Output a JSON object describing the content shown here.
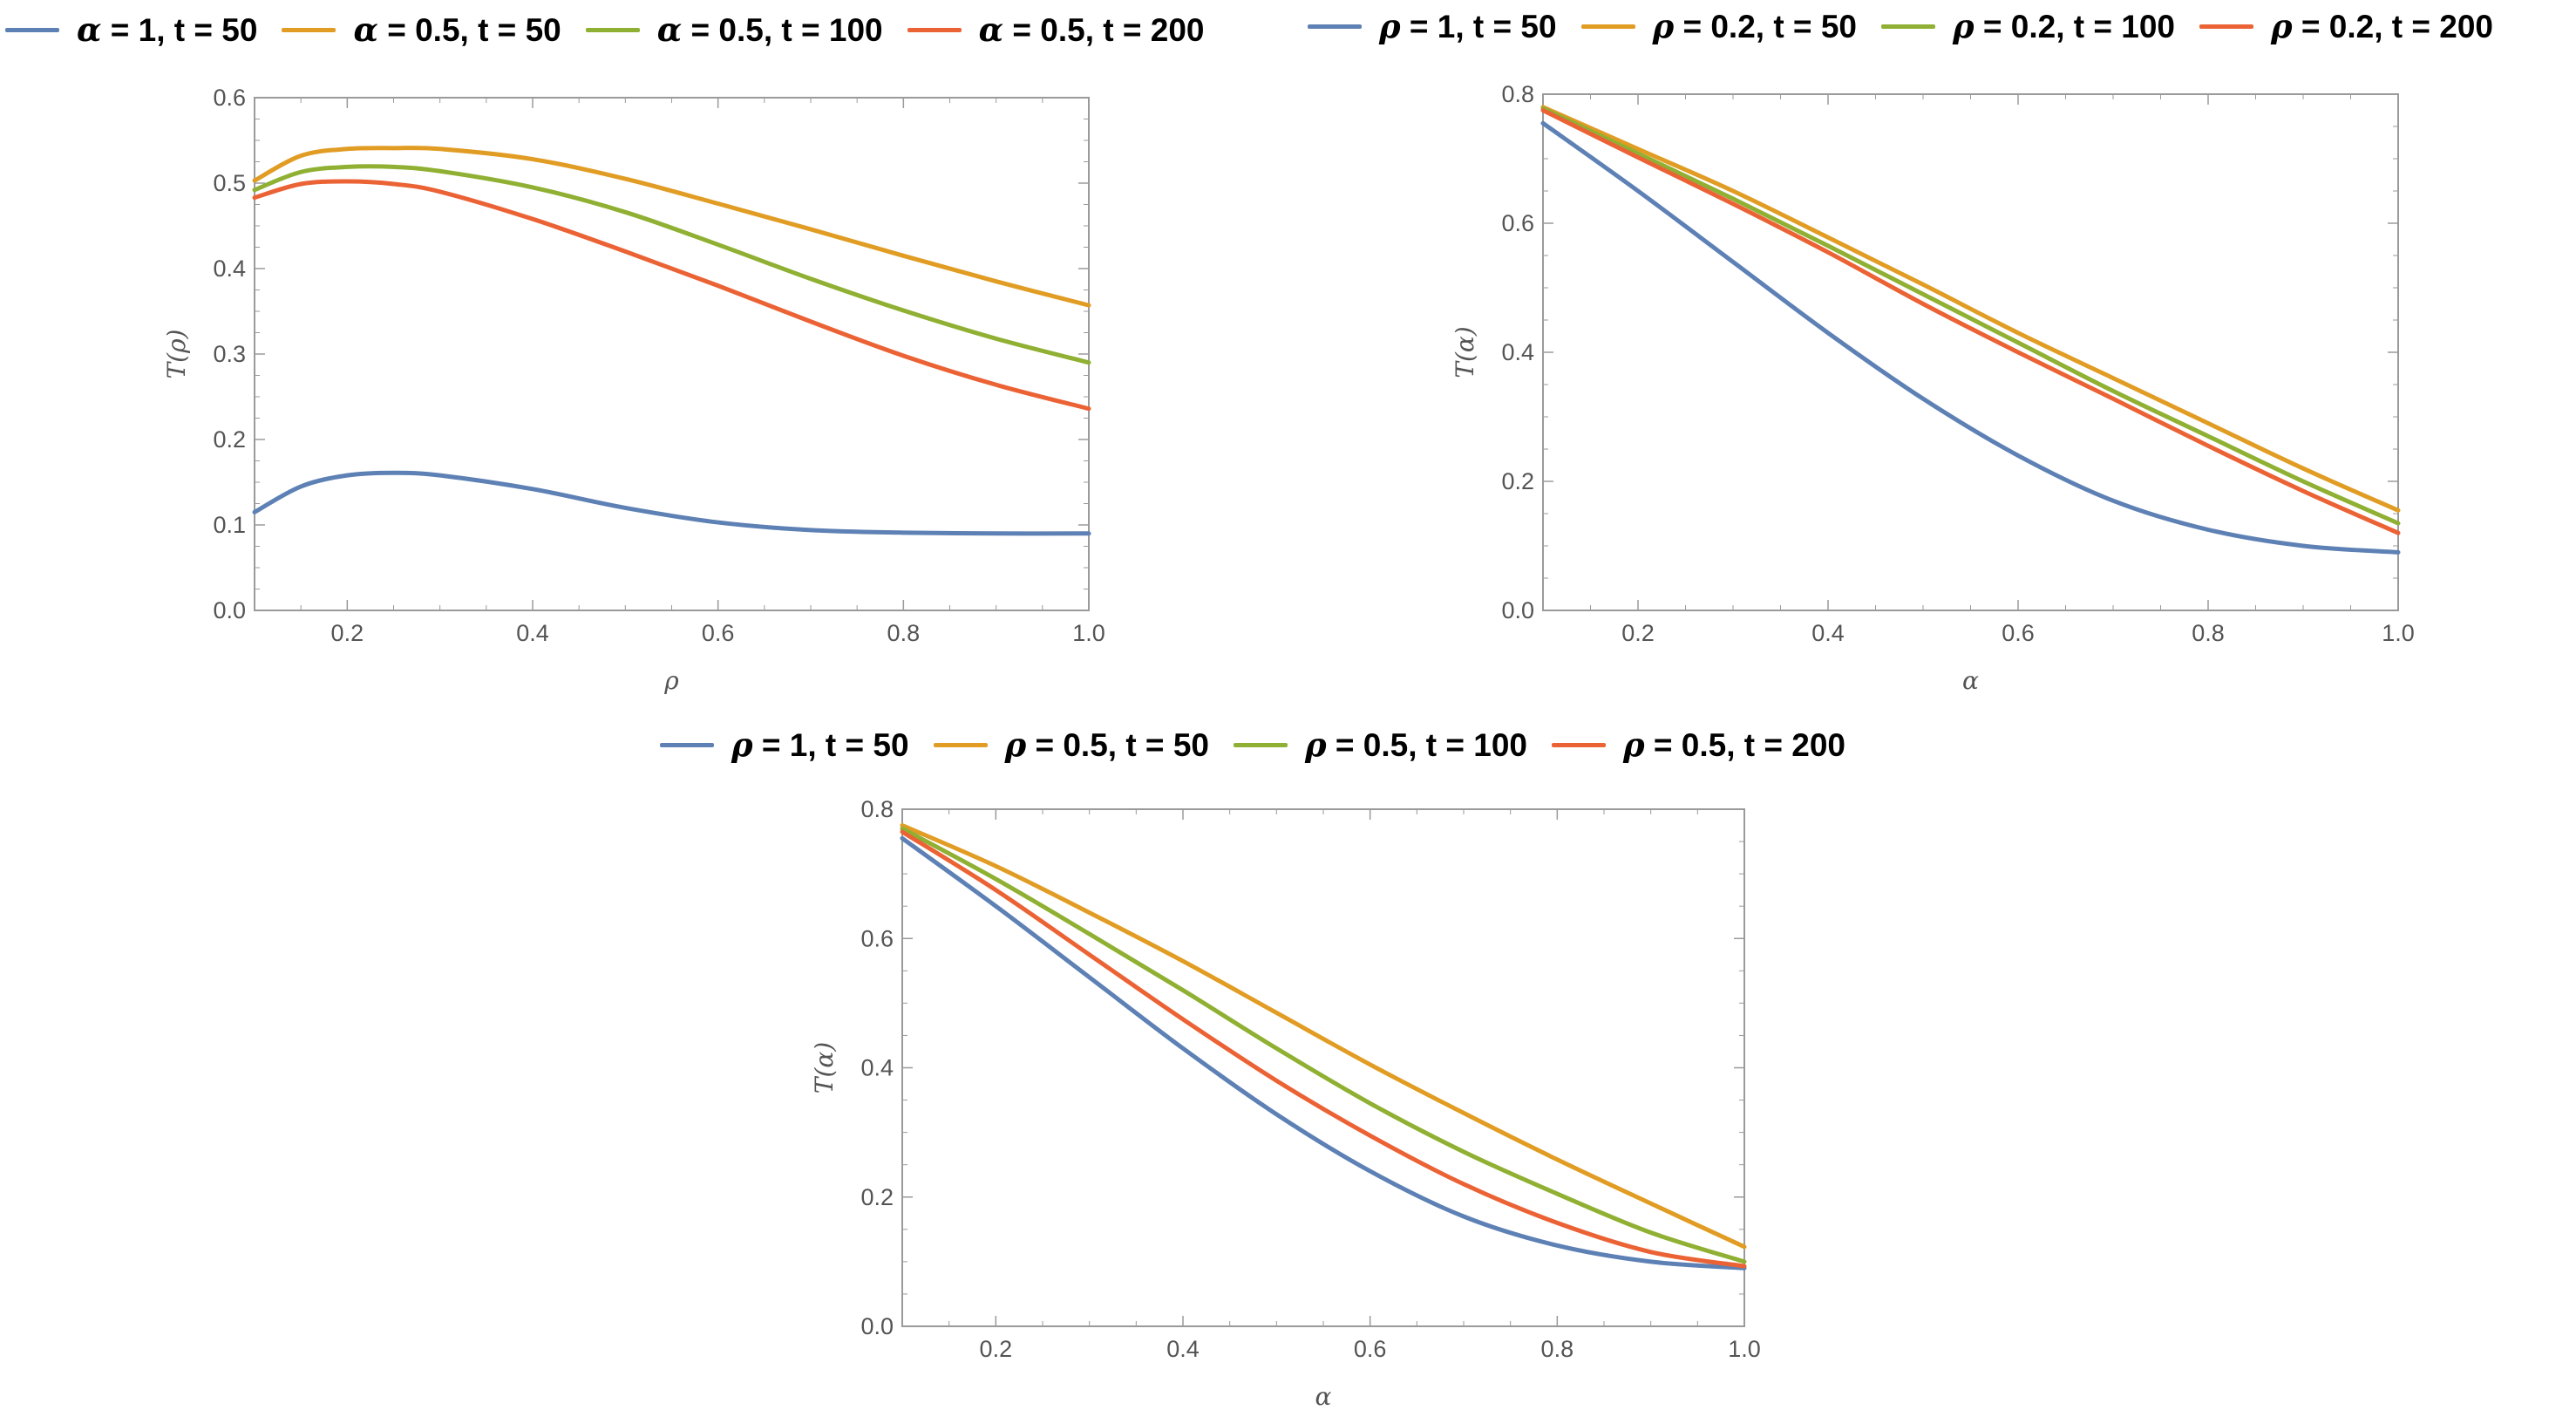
{
  "colors": {
    "blue": "#5E81B5",
    "orange": "#E19C24",
    "green": "#8FB032",
    "red": "#EB6235",
    "axis": "#9a9a9a",
    "text": "#545454"
  },
  "chart_data": [
    {
      "type": "line",
      "xlabel": "ρ",
      "ylabel": "T(ρ)",
      "xlim": [
        0.1,
        1.0
      ],
      "ylim": [
        0.0,
        0.6
      ],
      "xticks": [
        0.2,
        0.4,
        0.6,
        0.8,
        1.0
      ],
      "xtick_labels": [
        "0.2",
        "0.4",
        "0.6",
        "0.8",
        "1.0"
      ],
      "yticks": [
        0.0,
        0.1,
        0.2,
        0.3,
        0.4,
        0.5,
        0.6
      ],
      "ytick_labels": [
        "0.0",
        "0.1",
        "0.2",
        "0.3",
        "0.4",
        "0.5",
        "0.6"
      ],
      "legend": [
        {
          "sym": "α",
          "rest": " = 1, t = 50",
          "color": "#5E81B5"
        },
        {
          "sym": "α",
          "rest": " = 0.5, t = 50",
          "color": "#E19C24"
        },
        {
          "sym": "α",
          "rest": " = 0.5, t = 100",
          "color": "#8FB032"
        },
        {
          "sym": "α",
          "rest": " = 0.5, t = 200",
          "color": "#EB6235"
        }
      ],
      "series": [
        {
          "name": "α = 1, t = 50",
          "color": "#5E81B5",
          "x": [
            0.1,
            0.15,
            0.2,
            0.25,
            0.3,
            0.4,
            0.5,
            0.6,
            0.7,
            0.8,
            0.9,
            1.0
          ],
          "y": [
            0.115,
            0.145,
            0.158,
            0.161,
            0.158,
            0.142,
            0.12,
            0.103,
            0.094,
            0.091,
            0.09,
            0.09
          ]
        },
        {
          "name": "α = 0.5, t = 50",
          "color": "#E19C24",
          "x": [
            0.1,
            0.15,
            0.2,
            0.25,
            0.3,
            0.4,
            0.5,
            0.6,
            0.7,
            0.8,
            0.9,
            1.0
          ],
          "y": [
            0.503,
            0.532,
            0.54,
            0.541,
            0.54,
            0.528,
            0.505,
            0.476,
            0.446,
            0.415,
            0.385,
            0.357
          ]
        },
        {
          "name": "α = 0.5, t = 100",
          "color": "#8FB032",
          "x": [
            0.1,
            0.15,
            0.2,
            0.25,
            0.3,
            0.4,
            0.5,
            0.6,
            0.7,
            0.8,
            0.9,
            1.0
          ],
          "y": [
            0.492,
            0.513,
            0.519,
            0.519,
            0.514,
            0.495,
            0.466,
            0.428,
            0.388,
            0.351,
            0.318,
            0.29
          ]
        },
        {
          "name": "α = 0.5, t = 200",
          "color": "#EB6235",
          "x": [
            0.1,
            0.15,
            0.2,
            0.25,
            0.3,
            0.4,
            0.5,
            0.6,
            0.7,
            0.8,
            0.9,
            1.0
          ],
          "y": [
            0.483,
            0.499,
            0.502,
            0.499,
            0.49,
            0.458,
            0.42,
            0.38,
            0.338,
            0.298,
            0.264,
            0.236
          ]
        }
      ]
    },
    {
      "type": "line",
      "xlabel": "α",
      "ylabel": "T(α)",
      "xlim": [
        0.1,
        1.0
      ],
      "ylim": [
        0.0,
        0.8
      ],
      "xticks": [
        0.2,
        0.4,
        0.6,
        0.8,
        1.0
      ],
      "xtick_labels": [
        "0.2",
        "0.4",
        "0.6",
        "0.8",
        "1.0"
      ],
      "yticks": [
        0.0,
        0.2,
        0.4,
        0.6,
        0.8
      ],
      "ytick_labels": [
        "0.0",
        "0.2",
        "0.4",
        "0.6",
        "0.8"
      ],
      "legend": [
        {
          "sym": "ρ",
          "rest": " = 1, t = 50",
          "color": "#5E81B5"
        },
        {
          "sym": "ρ",
          "rest": " = 0.2, t = 50",
          "color": "#E19C24"
        },
        {
          "sym": "ρ",
          "rest": " = 0.2, t = 100",
          "color": "#8FB032"
        },
        {
          "sym": "ρ",
          "rest": " = 0.2, t = 200",
          "color": "#EB6235"
        }
      ],
      "series": [
        {
          "name": "ρ = 1, t = 50",
          "color": "#5E81B5",
          "x": [
            0.1,
            0.2,
            0.3,
            0.4,
            0.5,
            0.6,
            0.7,
            0.8,
            0.9,
            1.0
          ],
          "y": [
            0.755,
            0.65,
            0.54,
            0.43,
            0.328,
            0.24,
            0.17,
            0.125,
            0.1,
            0.09
          ]
        },
        {
          "name": "ρ = 0.2, t = 50",
          "color": "#E19C24",
          "x": [
            0.1,
            0.2,
            0.3,
            0.4,
            0.5,
            0.6,
            0.7,
            0.8,
            0.9,
            1.0
          ],
          "y": [
            0.78,
            0.715,
            0.65,
            0.578,
            0.505,
            0.43,
            0.36,
            0.29,
            0.22,
            0.155
          ]
        },
        {
          "name": "ρ = 0.2, t = 100",
          "color": "#8FB032",
          "x": [
            0.1,
            0.2,
            0.3,
            0.4,
            0.5,
            0.6,
            0.7,
            0.8,
            0.9,
            1.0
          ],
          "y": [
            0.778,
            0.708,
            0.638,
            0.565,
            0.49,
            0.415,
            0.34,
            0.27,
            0.2,
            0.135
          ]
        },
        {
          "name": "ρ = 0.2, t = 200",
          "color": "#EB6235",
          "x": [
            0.1,
            0.2,
            0.3,
            0.4,
            0.5,
            0.6,
            0.7,
            0.8,
            0.9,
            1.0
          ],
          "y": [
            0.775,
            0.702,
            0.63,
            0.555,
            0.475,
            0.4,
            0.328,
            0.255,
            0.185,
            0.12
          ]
        }
      ]
    },
    {
      "type": "line",
      "xlabel": "α",
      "ylabel": "T(α)",
      "xlim": [
        0.1,
        1.0
      ],
      "ylim": [
        0.0,
        0.8
      ],
      "xticks": [
        0.2,
        0.4,
        0.6,
        0.8,
        1.0
      ],
      "xtick_labels": [
        "0.2",
        "0.4",
        "0.6",
        "0.8",
        "1.0"
      ],
      "yticks": [
        0.0,
        0.2,
        0.4,
        0.6,
        0.8
      ],
      "ytick_labels": [
        "0.0",
        "0.2",
        "0.4",
        "0.6",
        "0.8"
      ],
      "legend": [
        {
          "sym": "ρ",
          "rest": " = 1, t = 50",
          "color": "#5E81B5"
        },
        {
          "sym": "ρ",
          "rest": " = 0.5, t = 50",
          "color": "#E19C24"
        },
        {
          "sym": "ρ",
          "rest": " = 0.5, t = 100",
          "color": "#8FB032"
        },
        {
          "sym": "ρ",
          "rest": " = 0.5, t = 200",
          "color": "#EB6235"
        }
      ],
      "series": [
        {
          "name": "ρ = 1, t = 50",
          "color": "#5E81B5",
          "x": [
            0.1,
            0.2,
            0.3,
            0.4,
            0.5,
            0.6,
            0.7,
            0.8,
            0.9,
            1.0
          ],
          "y": [
            0.755,
            0.65,
            0.54,
            0.43,
            0.328,
            0.24,
            0.17,
            0.125,
            0.1,
            0.09
          ]
        },
        {
          "name": "ρ = 0.5, t = 50",
          "color": "#E19C24",
          "x": [
            0.1,
            0.2,
            0.3,
            0.4,
            0.5,
            0.6,
            0.7,
            0.8,
            0.9,
            1.0
          ],
          "y": [
            0.775,
            0.712,
            0.64,
            0.565,
            0.485,
            0.405,
            0.33,
            0.258,
            0.19,
            0.123
          ]
        },
        {
          "name": "ρ = 0.5, t = 100",
          "color": "#8FB032",
          "x": [
            0.1,
            0.2,
            0.3,
            0.4,
            0.5,
            0.6,
            0.7,
            0.8,
            0.9,
            1.0
          ],
          "y": [
            0.77,
            0.692,
            0.607,
            0.52,
            0.43,
            0.345,
            0.27,
            0.205,
            0.145,
            0.1
          ]
        },
        {
          "name": "ρ = 0.5, t = 200",
          "color": "#EB6235",
          "x": [
            0.1,
            0.2,
            0.3,
            0.4,
            0.5,
            0.6,
            0.7,
            0.8,
            0.9,
            1.0
          ],
          "y": [
            0.765,
            0.675,
            0.575,
            0.475,
            0.38,
            0.295,
            0.22,
            0.16,
            0.115,
            0.093
          ]
        }
      ]
    }
  ]
}
